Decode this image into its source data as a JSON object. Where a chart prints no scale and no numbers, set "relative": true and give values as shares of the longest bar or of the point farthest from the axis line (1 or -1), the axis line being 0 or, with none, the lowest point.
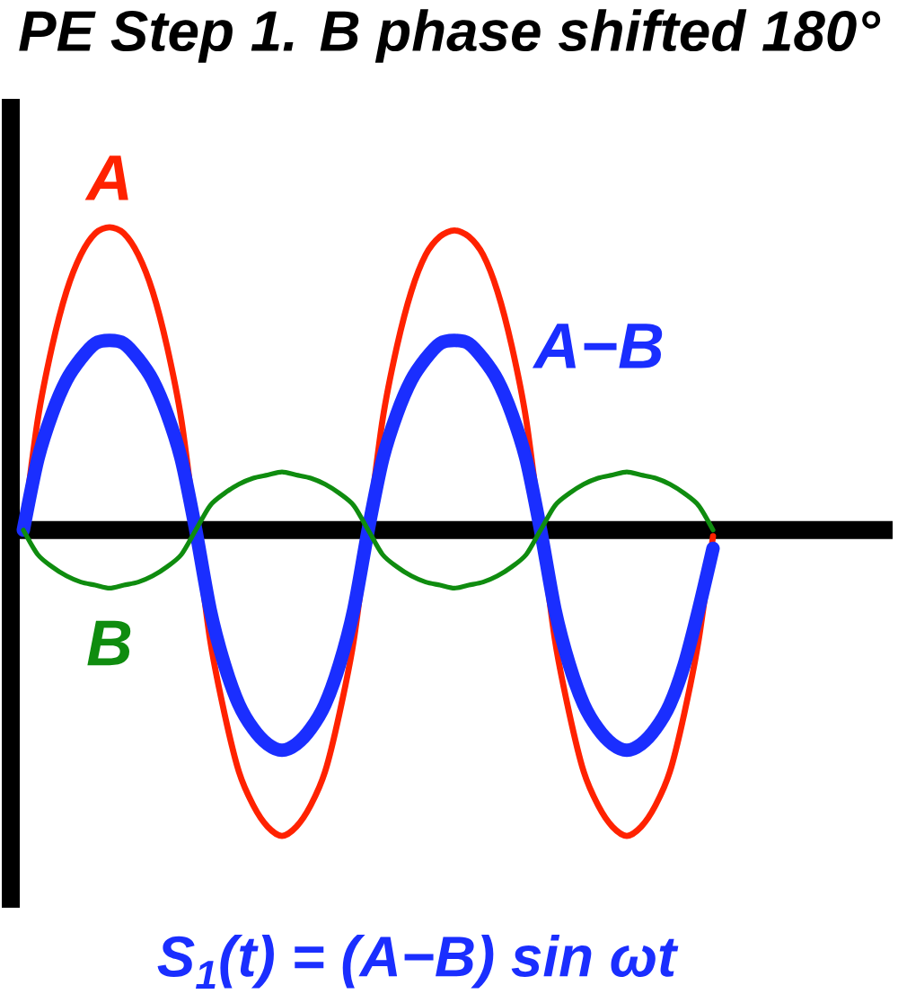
{
  "chart_data": {
    "type": "line",
    "title": "PE Step 1.  B phase shifted 180°",
    "relative": true,
    "categories": [
      null,
      null,
      null,
      null,
      null,
      null,
      null,
      null,
      null,
      null,
      null,
      null,
      null,
      null,
      null,
      null,
      null,
      null,
      null,
      null,
      null,
      null,
      null,
      null,
      null,
      null,
      null,
      null,
      null,
      null,
      null,
      null,
      null,
      null,
      null,
      null,
      null,
      null,
      null,
      null,
      null,
      null,
      null,
      null,
      null,
      null,
      null,
      null,
      null
    ],
    "series": [
      {
        "name": "A",
        "color": "#ff2200",
        "values": [
          0,
          0.36,
          0.6,
          0.78,
          0.9,
          0.97,
          0.99,
          0.97,
          0.9,
          0.78,
          0.6,
          0.36,
          0,
          -0.36,
          -0.6,
          -0.79,
          -0.9,
          -0.97,
          -1,
          -0.97,
          -0.9,
          -0.79,
          -0.6,
          -0.36,
          0,
          0.36,
          0.6,
          0.78,
          0.9,
          0.96,
          0.98,
          0.96,
          0.9,
          0.78,
          0.6,
          0.36,
          0,
          -0.36,
          -0.6,
          -0.79,
          -0.9,
          -0.97,
          -1,
          -0.97,
          -0.9,
          -0.79,
          -0.6,
          -0.36,
          -0.02
        ]
      },
      {
        "name": "A−B",
        "color": "#1a2eff",
        "values": [
          0,
          0.23,
          0.38,
          0.49,
          0.56,
          0.61,
          0.62,
          0.61,
          0.56,
          0.49,
          0.38,
          0.23,
          0,
          -0.26,
          -0.44,
          -0.57,
          -0.65,
          -0.7,
          -0.72,
          -0.7,
          -0.65,
          -0.57,
          -0.44,
          -0.26,
          0,
          0.23,
          0.38,
          0.49,
          0.56,
          0.61,
          0.62,
          0.61,
          0.56,
          0.49,
          0.38,
          0.23,
          0,
          -0.26,
          -0.44,
          -0.57,
          -0.65,
          -0.7,
          -0.72,
          -0.7,
          -0.65,
          -0.57,
          -0.44,
          -0.26,
          -0.06
        ]
      },
      {
        "name": "B",
        "color": "#0f8c0f",
        "values": [
          0,
          -0.08,
          -0.12,
          -0.15,
          -0.17,
          -0.18,
          -0.19,
          -0.18,
          -0.17,
          -0.15,
          -0.12,
          -0.08,
          0,
          0.08,
          0.12,
          0.15,
          0.17,
          0.18,
          0.19,
          0.18,
          0.17,
          0.15,
          0.12,
          0.08,
          0,
          -0.08,
          -0.12,
          -0.15,
          -0.17,
          -0.18,
          -0.19,
          -0.18,
          -0.17,
          -0.15,
          -0.12,
          -0.08,
          0,
          0.08,
          0.12,
          0.15,
          0.17,
          0.18,
          0.19,
          0.18,
          0.17,
          0.15,
          0.12,
          0.08,
          0
        ]
      }
    ],
    "annotations": [
      "S$_{1}$(t) = (A−B) sin ωt"
    ]
  }
}
